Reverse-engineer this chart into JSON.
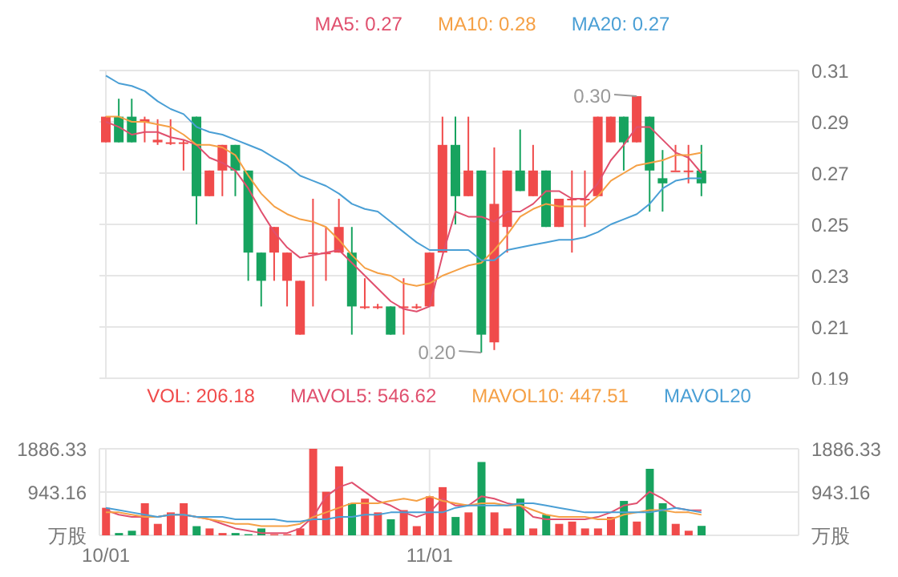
{
  "chart_data": [
    {
      "type": "candlestick",
      "categories": [
        null,
        null,
        null,
        null,
        null,
        null,
        null,
        null,
        null,
        null,
        null,
        null,
        null,
        null,
        null,
        null,
        null,
        null,
        null,
        null,
        null,
        null,
        null,
        null,
        null,
        null,
        null,
        null,
        null,
        null,
        null,
        null,
        null,
        null,
        null,
        null,
        null,
        null,
        null,
        null,
        null,
        null,
        null,
        null,
        null,
        null,
        null,
        null,
        null,
        null,
        null,
        null,
        null,
        null
      ],
      "ohlc": [
        [
          0.282,
          0.292,
          0.282,
          0.292
        ],
        [
          0.292,
          0.299,
          0.282,
          0.282
        ],
        [
          0.292,
          0.299,
          0.282,
          0.282
        ],
        [
          0.29,
          0.292,
          0.282,
          0.291
        ],
        [
          0.282,
          0.291,
          0.281,
          0.283
        ],
        [
          0.282,
          0.291,
          0.281,
          0.282
        ],
        [
          0.282,
          0.283,
          0.271,
          0.282
        ],
        [
          0.292,
          0.292,
          0.25,
          0.261
        ],
        [
          0.261,
          0.271,
          0.261,
          0.271
        ],
        [
          0.271,
          0.281,
          0.261,
          0.281
        ],
        [
          0.281,
          0.281,
          0.261,
          0.271
        ],
        [
          0.271,
          0.271,
          0.228,
          0.239
        ],
        [
          0.239,
          0.239,
          0.218,
          0.228
        ],
        [
          0.239,
          0.249,
          0.228,
          0.249
        ],
        [
          0.228,
          0.239,
          0.218,
          0.239
        ],
        [
          0.207,
          0.228,
          0.207,
          0.228
        ],
        [
          0.239,
          0.26,
          0.218,
          0.239
        ],
        [
          0.239,
          0.249,
          0.228,
          0.239
        ],
        [
          0.239,
          0.26,
          0.239,
          0.249
        ],
        [
          0.239,
          0.249,
          0.207,
          0.218
        ],
        [
          0.218,
          0.229,
          0.217,
          0.218
        ],
        [
          0.218,
          0.219,
          0.217,
          0.218
        ],
        [
          0.218,
          0.218,
          0.207,
          0.207
        ],
        [
          0.218,
          0.229,
          0.207,
          0.218
        ],
        [
          0.218,
          0.219,
          0.217,
          0.218
        ],
        [
          0.218,
          0.239,
          0.218,
          0.239
        ],
        [
          0.239,
          0.292,
          0.239,
          0.281
        ],
        [
          0.281,
          0.292,
          0.25,
          0.261
        ],
        [
          0.261,
          0.292,
          0.261,
          0.271
        ],
        [
          0.271,
          0.271,
          0.2,
          0.207
        ],
        [
          0.204,
          0.28,
          0.201,
          0.258
        ],
        [
          0.249,
          0.271,
          0.239,
          0.271
        ],
        [
          0.271,
          0.287,
          0.263,
          0.263
        ],
        [
          0.261,
          0.281,
          0.261,
          0.271
        ],
        [
          0.271,
          0.271,
          0.249,
          0.249
        ],
        [
          0.249,
          0.26,
          0.249,
          0.26
        ],
        [
          0.26,
          0.271,
          0.239,
          0.26
        ],
        [
          0.26,
          0.271,
          0.249,
          0.26
        ],
        [
          0.261,
          0.292,
          0.261,
          0.292
        ],
        [
          0.282,
          0.292,
          0.282,
          0.292
        ],
        [
          0.292,
          0.292,
          0.271,
          0.282
        ],
        [
          0.282,
          0.3,
          0.282,
          0.3
        ],
        [
          0.292,
          0.292,
          0.255,
          0.271
        ],
        [
          0.268,
          0.279,
          0.255,
          0.266
        ],
        [
          0.271,
          0.281,
          0.271,
          0.271
        ],
        [
          0.271,
          0.281,
          0.266,
          0.271
        ],
        [
          0.271,
          0.281,
          0.261,
          0.266
        ],
        null,
        null,
        null,
        null,
        null,
        null,
        null
      ],
      "colors": [
        "#f04b4b",
        "#17a35f",
        "#17a35f",
        "#f04b4b",
        "#f04b4b",
        "#f04b4b",
        "#f04b4b",
        "#17a35f",
        "#f04b4b",
        "#f04b4b",
        "#17a35f",
        "#17a35f",
        "#17a35f",
        "#f04b4b",
        "#f04b4b",
        "#f04b4b",
        "#f04b4b",
        "#f04b4b",
        "#f04b4b",
        "#17a35f",
        "#f04b4b",
        "#f04b4b",
        "#17a35f",
        "#f04b4b",
        "#f04b4b",
        "#f04b4b",
        "#f04b4b",
        "#17a35f",
        "#f04b4b",
        "#17a35f",
        "#f04b4b",
        "#f04b4b",
        "#17a35f",
        "#f04b4b",
        "#17a35f",
        "#f04b4b",
        "#f04b4b",
        "#f04b4b",
        "#f04b4b",
        "#f04b4b",
        "#17a35f",
        "#f04b4b",
        "#17a35f",
        "#17a35f",
        "#f04b4b",
        "#f04b4b",
        "#17a35f",
        null,
        null,
        null,
        null,
        null,
        null,
        null
      ],
      "series": [
        {
          "name": "MA5: 0.27",
          "type": "line",
          "color": "#e0506e",
          "values": [
            0.29,
            0.288,
            0.285,
            0.286,
            0.286,
            0.284,
            0.283,
            0.281,
            0.276,
            0.274,
            0.271,
            0.264,
            0.255,
            0.247,
            0.241,
            0.237,
            0.238,
            0.239,
            0.24,
            0.235,
            0.23,
            0.225,
            0.22,
            0.217,
            0.216,
            0.218,
            0.238,
            0.255,
            0.253,
            0.253,
            0.251,
            0.255,
            0.255,
            0.258,
            0.263,
            0.263,
            0.26,
            0.26,
            0.266,
            0.275,
            0.281,
            0.288,
            0.288,
            0.283,
            0.278,
            0.276,
            0.27,
            null,
            null,
            null,
            null,
            null,
            null,
            null
          ]
        },
        {
          "name": "MA10: 0.28",
          "type": "line",
          "color": "#f5a045",
          "values": [
            0.292,
            0.292,
            0.29,
            0.29,
            0.289,
            0.288,
            0.285,
            0.281,
            0.281,
            0.28,
            0.277,
            0.269,
            0.262,
            0.257,
            0.254,
            0.252,
            0.251,
            0.249,
            0.244,
            0.238,
            0.233,
            0.231,
            0.23,
            0.227,
            0.226,
            0.227,
            0.23,
            0.232,
            0.234,
            0.235,
            0.24,
            0.246,
            0.253,
            0.256,
            0.258,
            0.257,
            0.257,
            0.257,
            0.261,
            0.267,
            0.27,
            0.273,
            0.274,
            0.275,
            0.277,
            0.277,
            0.278,
            null,
            null,
            null,
            null,
            null,
            null,
            null
          ]
        },
        {
          "name": "MA20: 0.27",
          "type": "line",
          "color": "#4a9fd5",
          "values": [
            0.308,
            0.305,
            0.304,
            0.302,
            0.298,
            0.295,
            0.293,
            0.288,
            0.286,
            0.285,
            0.283,
            0.281,
            0.279,
            0.276,
            0.273,
            0.269,
            0.267,
            0.265,
            0.262,
            0.258,
            0.256,
            0.255,
            0.251,
            0.247,
            0.243,
            0.24,
            0.24,
            0.24,
            0.24,
            0.236,
            0.236,
            0.24,
            0.241,
            0.242,
            0.243,
            0.244,
            0.244,
            0.245,
            0.247,
            0.25,
            0.252,
            0.254,
            0.258,
            0.264,
            0.267,
            0.268,
            0.268,
            null,
            null,
            null,
            null,
            null,
            null,
            null
          ]
        }
      ],
      "ylim": [
        0.19,
        0.31
      ],
      "yticks": [
        0.19,
        0.21,
        0.23,
        0.25,
        0.27,
        0.29,
        0.31
      ],
      "grid": true,
      "legend": "top",
      "marker": "none",
      "tick_labels": "y",
      "annotations": [
        "0.30",
        "0.20"
      ]
    },
    {
      "type": "bar",
      "categories": [
        "10/01",
        null,
        null,
        null,
        null,
        null,
        null,
        null,
        null,
        null,
        null,
        null,
        null,
        null,
        null,
        null,
        null,
        null,
        null,
        null,
        null,
        null,
        null,
        null,
        null,
        "11/01",
        null,
        null,
        null,
        null,
        null,
        null,
        null,
        null,
        null,
        null,
        null,
        null,
        null,
        null,
        null,
        null,
        null,
        null,
        null,
        null,
        null,
        null,
        null,
        null,
        null,
        null,
        null,
        null
      ],
      "series": [
        {
          "name": "VOL: 206.18",
          "type": "bar",
          "colors": [
            "#f04b4b",
            "#17a35f",
            "#17a35f",
            "#f04b4b",
            "#f04b4b",
            "#f04b4b",
            "#f04b4b",
            "#17a35f",
            "#f04b4b",
            "#f04b4b",
            "#17a35f",
            "#17a35f",
            "#17a35f",
            "#f04b4b",
            "#f04b4b",
            "#f04b4b",
            "#f04b4b",
            "#f04b4b",
            "#f04b4b",
            "#17a35f",
            "#f04b4b",
            "#f04b4b",
            "#17a35f",
            "#f04b4b",
            "#f04b4b",
            "#f04b4b",
            "#f04b4b",
            "#17a35f",
            "#f04b4b",
            "#17a35f",
            "#f04b4b",
            "#f04b4b",
            "#17a35f",
            "#f04b4b",
            "#17a35f",
            "#f04b4b",
            "#f04b4b",
            "#f04b4b",
            "#f04b4b",
            "#f04b4b",
            "#17a35f",
            "#f04b4b",
            "#17a35f",
            "#17a35f",
            "#f04b4b",
            "#f04b4b",
            "#17a35f",
            null,
            null,
            null,
            null,
            null,
            null,
            null
          ],
          "values": [
            600,
            50,
            100,
            700,
            250,
            500,
            700,
            200,
            150,
            50,
            50,
            25,
            150,
            25,
            25,
            150,
            1886.33,
            950,
            1500,
            700,
            800,
            500,
            350,
            550,
            200,
            850,
            1050,
            400,
            500,
            1600,
            500,
            150,
            800,
            150,
            450,
            250,
            300,
            150,
            150,
            400,
            750,
            300,
            1450,
            700,
            250,
            100,
            206.18,
            null,
            null,
            null,
            null,
            null,
            null,
            null
          ]
        },
        {
          "name": "MAVOL5: 546.62",
          "type": "line",
          "color": "#e0506e",
          "values": [
            550,
            450,
            400,
            400,
            400,
            450,
            450,
            400,
            350,
            250,
            150,
            100,
            50,
            50,
            50,
            150,
            400,
            850,
            1050,
            1150,
            950,
            750,
            650,
            500,
            400,
            500,
            800,
            650,
            650,
            850,
            800,
            700,
            650,
            400,
            350,
            350,
            350,
            350,
            400,
            500,
            650,
            700,
            950,
            800,
            600,
            550,
            546.62,
            null,
            null,
            null,
            null,
            null,
            null,
            null
          ]
        },
        {
          "name": "MAVOL10: 447.51",
          "type": "line",
          "color": "#f5a045",
          "values": [
            500,
            500,
            450,
            400,
            400,
            450,
            450,
            400,
            350,
            300,
            250,
            250,
            200,
            200,
            200,
            250,
            400,
            500,
            600,
            700,
            700,
            700,
            750,
            800,
            750,
            850,
            750,
            700,
            650,
            700,
            700,
            650,
            650,
            550,
            450,
            400,
            400,
            400,
            350,
            350,
            450,
            500,
            550,
            550,
            500,
            500,
            447.51,
            null,
            null,
            null,
            null,
            null,
            null,
            null
          ]
        },
        {
          "name": "MAVOL20",
          "type": "line",
          "color": "#4a9fd5",
          "values": [
            600,
            550,
            500,
            450,
            400,
            450,
            450,
            400,
            400,
            400,
            350,
            350,
            350,
            350,
            300,
            300,
            350,
            350,
            400,
            400,
            450,
            450,
            500,
            500,
            500,
            500,
            500,
            600,
            650,
            650,
            650,
            650,
            700,
            700,
            650,
            600,
            550,
            500,
            500,
            500,
            500,
            500,
            500,
            550,
            600,
            550,
            500,
            null,
            null,
            null,
            null,
            null,
            null,
            null
          ]
        }
      ],
      "ylim": [
        0,
        1886.33
      ],
      "yticks": [
        {
          "value": 0,
          "label": "万股"
        },
        943.16,
        1886.33
      ],
      "y2lim": [
        0,
        1886.33
      ],
      "y2ticks": [
        {
          "value": 0,
          "label": "万股"
        },
        943.16,
        1886.33
      ],
      "grid": true,
      "legend": "top",
      "marker": "none"
    }
  ]
}
